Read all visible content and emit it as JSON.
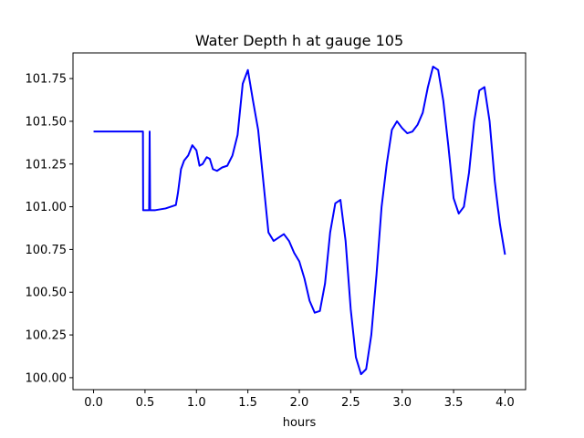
{
  "chart_data": {
    "type": "line",
    "title": "Water Depth h at gauge 105",
    "xlabel": "hours",
    "ylabel": "",
    "xlim": [
      -0.2,
      4.2
    ],
    "ylim": [
      99.93,
      101.9
    ],
    "grid": false,
    "xticks": [
      "0.0",
      "0.5",
      "1.0",
      "1.5",
      "2.0",
      "2.5",
      "3.0",
      "3.5",
      "4.0"
    ],
    "yticks": [
      "100.00",
      "100.25",
      "100.50",
      "100.75",
      "101.00",
      "101.25",
      "101.50",
      "101.75"
    ],
    "series": [
      {
        "color": "#0000ff",
        "x": [
          0.0,
          0.1,
          0.2,
          0.3,
          0.4,
          0.47,
          0.48,
          0.482,
          0.49,
          0.53,
          0.54,
          0.545,
          0.55,
          0.555,
          0.6,
          0.7,
          0.8,
          0.82,
          0.85,
          0.88,
          0.92,
          0.96,
          1.0,
          1.03,
          1.06,
          1.1,
          1.13,
          1.16,
          1.2,
          1.25,
          1.3,
          1.35,
          1.4,
          1.45,
          1.5,
          1.55,
          1.6,
          1.65,
          1.7,
          1.75,
          1.8,
          1.85,
          1.9,
          1.95,
          2.0,
          2.05,
          2.1,
          2.15,
          2.2,
          2.25,
          2.3,
          2.35,
          2.4,
          2.45,
          2.5,
          2.55,
          2.6,
          2.65,
          2.7,
          2.75,
          2.8,
          2.85,
          2.9,
          2.95,
          3.0,
          3.05,
          3.1,
          3.15,
          3.2,
          3.25,
          3.3,
          3.35,
          3.4,
          3.45,
          3.5,
          3.55,
          3.6,
          3.65,
          3.7,
          3.75,
          3.8,
          3.85,
          3.9,
          3.95,
          4.0
        ],
        "y": [
          101.44,
          101.44,
          101.44,
          101.44,
          101.44,
          101.44,
          101.44,
          100.98,
          100.98,
          100.98,
          100.98,
          101.44,
          100.98,
          100.98,
          100.98,
          100.99,
          101.01,
          101.08,
          101.22,
          101.27,
          101.3,
          101.36,
          101.33,
          101.24,
          101.25,
          101.29,
          101.28,
          101.22,
          101.21,
          101.23,
          101.24,
          101.3,
          101.42,
          101.72,
          101.8,
          101.62,
          101.45,
          101.15,
          100.85,
          100.8,
          100.82,
          100.84,
          100.8,
          100.73,
          100.68,
          100.58,
          100.45,
          100.38,
          100.39,
          100.55,
          100.85,
          101.02,
          101.04,
          100.8,
          100.4,
          100.12,
          100.02,
          100.05,
          100.25,
          100.6,
          101.0,
          101.25,
          101.45,
          101.5,
          101.46,
          101.43,
          101.44,
          101.48,
          101.55,
          101.7,
          101.82,
          101.8,
          101.62,
          101.35,
          101.05,
          100.96,
          101.0,
          101.2,
          101.5,
          101.68,
          101.7,
          101.5,
          101.15,
          100.9,
          100.72
        ]
      }
    ]
  }
}
